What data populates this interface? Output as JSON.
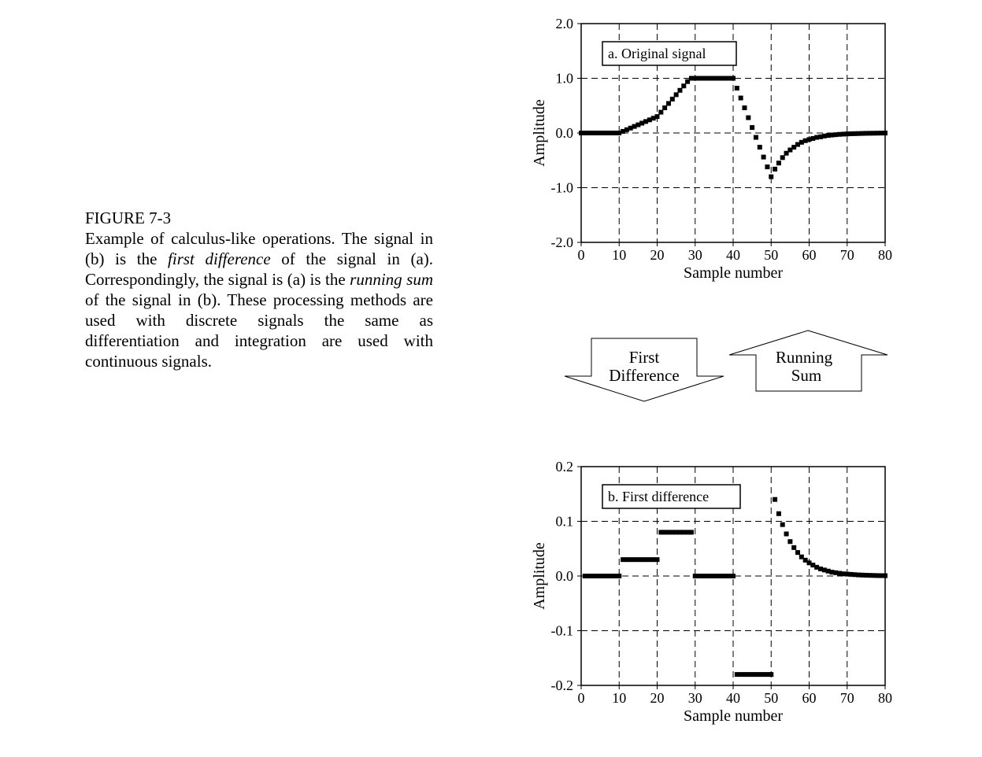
{
  "caption": {
    "figure_label": "FIGURE 7-3",
    "p1": "Example of calculus-like operations.  The signal in (b) is the ",
    "em1": "first difference",
    "p2": " of the signal in (a).  Correspondingly, the signal is (a) is the ",
    "em2": "running sum",
    "p3": " of the signal in (b). These processing methods are used with discrete signals the same as differentiation and integration are used with continuous signals."
  },
  "arrows": {
    "down": {
      "line1": "First",
      "line2": "Difference"
    },
    "up": {
      "line1": "Running",
      "line2": "Sum"
    }
  },
  "chart_data": [
    {
      "type": "scatter",
      "title": "a. Original signal",
      "xlabel": "Sample number",
      "ylabel": "Amplitude",
      "xlim": [
        0,
        80
      ],
      "ylim": [
        -2.0,
        2.0
      ],
      "x_ticks": [
        0,
        10,
        20,
        30,
        40,
        50,
        60,
        70,
        80
      ],
      "y_ticks": [
        -2.0,
        -1.0,
        0.0,
        1.0,
        2.0
      ],
      "y_tick_labels": [
        "-2.0",
        "-1.0",
        "0.0",
        "1.0",
        "2.0"
      ],
      "grid": true,
      "x": [
        0,
        1,
        2,
        3,
        4,
        5,
        6,
        7,
        8,
        9,
        10,
        11,
        12,
        13,
        14,
        15,
        16,
        17,
        18,
        19,
        20,
        21,
        22,
        23,
        24,
        25,
        26,
        27,
        28,
        29,
        30,
        31,
        32,
        33,
        34,
        35,
        36,
        37,
        38,
        39,
        40,
        41,
        42,
        43,
        44,
        45,
        46,
        47,
        48,
        49,
        50,
        51,
        52,
        53,
        54,
        55,
        56,
        57,
        58,
        59,
        60,
        61,
        62,
        63,
        64,
        65,
        66,
        67,
        68,
        69,
        70,
        71,
        72,
        73,
        74,
        75,
        76,
        77,
        78,
        79,
        80
      ],
      "y": [
        0,
        0,
        0,
        0,
        0,
        0,
        0,
        0,
        0,
        0,
        0,
        0.03,
        0.06,
        0.09,
        0.12,
        0.15,
        0.18,
        0.21,
        0.24,
        0.27,
        0.3,
        0.38,
        0.46,
        0.54,
        0.62,
        0.7,
        0.78,
        0.86,
        0.94,
        1.0,
        1.0,
        1.0,
        1.0,
        1.0,
        1.0,
        1.0,
        1.0,
        1.0,
        1.0,
        1.0,
        1.0,
        0.82,
        0.64,
        0.46,
        0.28,
        0.1,
        -0.08,
        -0.26,
        -0.44,
        -0.62,
        -0.8,
        -0.66,
        -0.55,
        -0.45,
        -0.37,
        -0.31,
        -0.26,
        -0.21,
        -0.17,
        -0.14,
        -0.12,
        -0.1,
        -0.08,
        -0.07,
        -0.055,
        -0.045,
        -0.037,
        -0.031,
        -0.025,
        -0.021,
        -0.017,
        -0.014,
        -0.012,
        -0.01,
        -0.008,
        -0.006,
        -0.005,
        -0.004,
        -0.003,
        -0.002,
        -0.001
      ]
    },
    {
      "type": "scatter",
      "title": "b. First difference",
      "xlabel": "Sample number",
      "ylabel": "Amplitude",
      "xlim": [
        0,
        80
      ],
      "ylim": [
        -0.2,
        0.2
      ],
      "x_ticks": [
        0,
        10,
        20,
        30,
        40,
        50,
        60,
        70,
        80
      ],
      "y_ticks": [
        -0.2,
        -0.1,
        0.0,
        0.1,
        0.2
      ],
      "y_tick_labels": [
        "-0.2",
        "-0.1",
        "0.0",
        "0.1",
        "0.2"
      ],
      "grid": true,
      "x": [
        1,
        2,
        3,
        4,
        5,
        6,
        7,
        8,
        9,
        10,
        11,
        12,
        13,
        14,
        15,
        16,
        17,
        18,
        19,
        20,
        21,
        22,
        23,
        24,
        25,
        26,
        27,
        28,
        29,
        30,
        31,
        32,
        33,
        34,
        35,
        36,
        37,
        38,
        39,
        40,
        41,
        42,
        43,
        44,
        45,
        46,
        47,
        48,
        49,
        50,
        51,
        52,
        53,
        54,
        55,
        56,
        57,
        58,
        59,
        60,
        61,
        62,
        63,
        64,
        65,
        66,
        67,
        68,
        69,
        70,
        71,
        72,
        73,
        74,
        75,
        76,
        77,
        78,
        79,
        80
      ],
      "y": [
        0,
        0,
        0,
        0,
        0,
        0,
        0,
        0,
        0,
        0,
        0.03,
        0.03,
        0.03,
        0.03,
        0.03,
        0.03,
        0.03,
        0.03,
        0.03,
        0.03,
        0.08,
        0.08,
        0.08,
        0.08,
        0.08,
        0.08,
        0.08,
        0.08,
        0.08,
        0,
        0,
        0,
        0,
        0,
        0,
        0,
        0,
        0,
        0,
        0,
        -0.18,
        -0.18,
        -0.18,
        -0.18,
        -0.18,
        -0.18,
        -0.18,
        -0.18,
        -0.18,
        -0.18,
        0.14,
        0.114,
        0.094,
        0.077,
        0.063,
        0.052,
        0.043,
        0.035,
        0.029,
        0.024,
        0.02,
        0.016,
        0.013,
        0.011,
        0.009,
        0.007,
        0.006,
        0.005,
        0.004,
        0.0035,
        0.003,
        0.0025,
        0.002,
        0.0017,
        0.0014,
        0.0012,
        0.001,
        0.0008,
        0.0007,
        0.0006
      ]
    }
  ]
}
